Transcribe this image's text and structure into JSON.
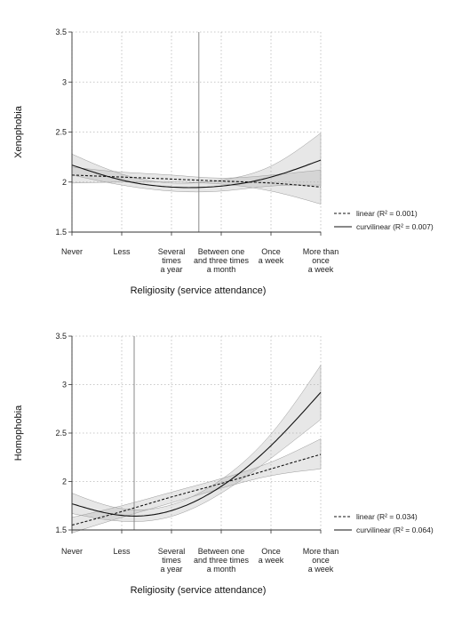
{
  "chart_data": [
    {
      "type": "line",
      "ylabel": "Xenophobia",
      "xlabel": "Religiosity (service attendance)",
      "ylim": [
        1.5,
        3.5
      ],
      "yticks": [
        "1.5",
        "2",
        "2.5",
        "3",
        "3.5"
      ],
      "categories": [
        [
          "Never"
        ],
        [
          "Less"
        ],
        [
          "Several",
          "times",
          "a year"
        ],
        [
          "Between one",
          "and three times",
          "a month"
        ],
        [
          "Once",
          "a week"
        ],
        [
          "More than",
          "once",
          "a week"
        ]
      ],
      "x": [
        0,
        1,
        2,
        3,
        4,
        5
      ],
      "grid": true,
      "legend_position": "bottom-right",
      "reference_line_x": 2.55,
      "series": [
        {
          "name": "linear (R² = 0.001)",
          "style": "dashed",
          "values": [
            2.07,
            2.05,
            2.03,
            2.01,
            1.99,
            1.95
          ],
          "ci_lower": [
            1.99,
            2.0,
            2.0,
            1.98,
            1.91,
            1.78
          ],
          "ci_upper": [
            2.15,
            2.1,
            2.07,
            2.04,
            2.07,
            2.12
          ]
        },
        {
          "name": "curvilinear (R² = 0.007)",
          "style": "solid",
          "values": [
            2.17,
            2.02,
            1.95,
            1.96,
            2.05,
            2.22
          ],
          "ci_lower": [
            2.07,
            1.97,
            1.91,
            1.91,
            1.96,
            1.97
          ],
          "ci_upper": [
            2.28,
            2.08,
            1.99,
            2.02,
            2.16,
            2.49
          ]
        }
      ]
    },
    {
      "type": "line",
      "ylabel": "Homophobia",
      "xlabel": "Religiosity (service attendance)",
      "ylim": [
        1.5,
        3.5
      ],
      "yticks": [
        "1.5",
        "2",
        "2.5",
        "3",
        "3.5"
      ],
      "categories": [
        [
          "Never"
        ],
        [
          "Less"
        ],
        [
          "Several",
          "times",
          "a year"
        ],
        [
          "Between one",
          "and three times",
          "a month"
        ],
        [
          "Once",
          "a week"
        ],
        [
          "More than",
          "once",
          "a week"
        ]
      ],
      "x": [
        0,
        1,
        2,
        3,
        4,
        5
      ],
      "grid": true,
      "legend_position": "bottom-right",
      "reference_line_x": 1.25,
      "series": [
        {
          "name": "linear (R² = 0.034)",
          "style": "dashed",
          "values": [
            1.55,
            1.69,
            1.84,
            1.98,
            2.13,
            2.28
          ],
          "ci_lower": [
            1.47,
            1.63,
            1.78,
            1.93,
            2.06,
            2.13
          ],
          "ci_upper": [
            1.63,
            1.75,
            1.89,
            2.03,
            2.2,
            2.44
          ]
        },
        {
          "name": "curvilinear (R² = 0.064)",
          "style": "solid",
          "values": [
            1.77,
            1.65,
            1.7,
            1.95,
            2.37,
            2.92
          ],
          "ci_lower": [
            1.67,
            1.59,
            1.64,
            1.88,
            2.24,
            2.64
          ],
          "ci_upper": [
            1.88,
            1.72,
            1.76,
            2.02,
            2.49,
            3.2
          ]
        }
      ]
    }
  ]
}
